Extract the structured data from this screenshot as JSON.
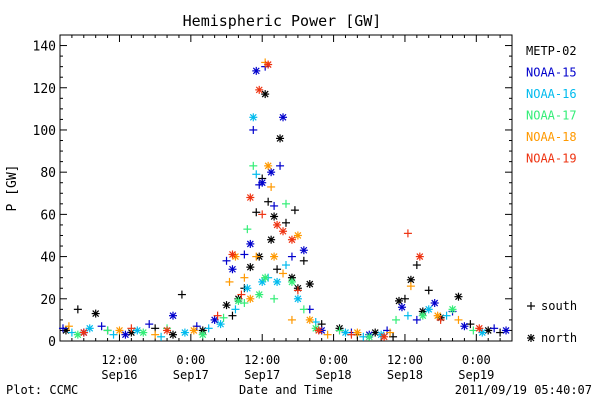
{
  "chart_data": {
    "type": "scatter",
    "title": "Hemispheric Power [GW]",
    "ylabel": "P [GW]",
    "xlabel": "Date and Time",
    "ylim": [
      0,
      145
    ],
    "xlim": [
      "2011-09-16T02:00",
      "2011-09-19T06:00"
    ],
    "yticks": [
      0,
      20,
      40,
      60,
      80,
      100,
      120,
      140
    ],
    "xticks": [
      {
        "t": "2011-09-16T12:00",
        "time": "12:00",
        "date": "Sep16"
      },
      {
        "t": "2011-09-17T00:00",
        "time": "0:00",
        "date": "Sep17"
      },
      {
        "t": "2011-09-17T12:00",
        "time": "12:00",
        "date": "Sep17"
      },
      {
        "t": "2011-09-18T00:00",
        "time": "0:00",
        "date": "Sep18"
      },
      {
        "t": "2011-09-18T12:00",
        "time": "12:00",
        "date": "Sep18"
      },
      {
        "t": "2011-09-19T00:00",
        "time": "0:00",
        "date": "Sep19"
      }
    ],
    "legend_position": "right",
    "marker_legend": [
      {
        "marker": "+",
        "label": "south"
      },
      {
        "marker": "*",
        "label": "north"
      }
    ],
    "series": [
      {
        "name": "METP-02",
        "color": "#000000",
        "points": [
          {
            "x": "2011-09-16T03:00",
            "y": 5,
            "m": "*"
          },
          {
            "x": "2011-09-16T05:00",
            "y": 15,
            "m": "+"
          },
          {
            "x": "2011-09-16T08:00",
            "y": 13,
            "m": "*"
          },
          {
            "x": "2011-09-16T10:00",
            "y": 5,
            "m": "+"
          },
          {
            "x": "2011-09-16T14:00",
            "y": 4,
            "m": "*"
          },
          {
            "x": "2011-09-16T18:00",
            "y": 6,
            "m": "+"
          },
          {
            "x": "2011-09-16T21:00",
            "y": 3,
            "m": "*"
          },
          {
            "x": "2011-09-16T22:30",
            "y": 22,
            "m": "+"
          },
          {
            "x": "2011-09-17T02:00",
            "y": 5,
            "m": "*"
          },
          {
            "x": "2011-09-17T06:00",
            "y": 17,
            "m": "*"
          },
          {
            "x": "2011-09-17T07:00",
            "y": 12,
            "m": "+"
          },
          {
            "x": "2011-09-17T08:00",
            "y": 20,
            "m": "*"
          },
          {
            "x": "2011-09-17T09:00",
            "y": 25,
            "m": "+"
          },
          {
            "x": "2011-09-17T10:00",
            "y": 35,
            "m": "*"
          },
          {
            "x": "2011-09-17T11:00",
            "y": 61,
            "m": "+"
          },
          {
            "x": "2011-09-17T11:30",
            "y": 40,
            "m": "*"
          },
          {
            "x": "2011-09-17T12:00",
            "y": 77,
            "m": "+"
          },
          {
            "x": "2011-09-17T12:30",
            "y": 117,
            "m": "*"
          },
          {
            "x": "2011-09-17T13:00",
            "y": 66,
            "m": "+"
          },
          {
            "x": "2011-09-17T13:30",
            "y": 48,
            "m": "*"
          },
          {
            "x": "2011-09-17T14:00",
            "y": 59,
            "m": "*"
          },
          {
            "x": "2011-09-17T14:30",
            "y": 34,
            "m": "+"
          },
          {
            "x": "2011-09-17T15:00",
            "y": 96,
            "m": "*"
          },
          {
            "x": "2011-09-17T16:00",
            "y": 56,
            "m": "+"
          },
          {
            "x": "2011-09-17T17:00",
            "y": 30,
            "m": "*"
          },
          {
            "x": "2011-09-17T17:30",
            "y": 62,
            "m": "+"
          },
          {
            "x": "2011-09-17T18:00",
            "y": 25,
            "m": "*"
          },
          {
            "x": "2011-09-17T19:00",
            "y": 38,
            "m": "+"
          },
          {
            "x": "2011-09-17T20:00",
            "y": 27,
            "m": "*"
          },
          {
            "x": "2011-09-17T22:00",
            "y": 8,
            "m": "+"
          },
          {
            "x": "2011-09-18T01:00",
            "y": 6,
            "m": "*"
          },
          {
            "x": "2011-09-18T04:00",
            "y": 3,
            "m": "+"
          },
          {
            "x": "2011-09-18T07:00",
            "y": 4,
            "m": "*"
          },
          {
            "x": "2011-09-18T10:00",
            "y": 2,
            "m": "+"
          },
          {
            "x": "2011-09-18T11:00",
            "y": 19,
            "m": "*"
          },
          {
            "x": "2011-09-18T12:00",
            "y": 20,
            "m": "+"
          },
          {
            "x": "2011-09-18T13:00",
            "y": 29,
            "m": "*"
          },
          {
            "x": "2011-09-18T14:00",
            "y": 36,
            "m": "+"
          },
          {
            "x": "2011-09-18T15:00",
            "y": 14,
            "m": "*"
          },
          {
            "x": "2011-09-18T16:00",
            "y": 24,
            "m": "+"
          },
          {
            "x": "2011-09-18T18:00",
            "y": 11,
            "m": "*"
          },
          {
            "x": "2011-09-18T21:00",
            "y": 21,
            "m": "*"
          },
          {
            "x": "2011-09-18T23:00",
            "y": 8,
            "m": "+"
          },
          {
            "x": "2011-09-19T02:00",
            "y": 5,
            "m": "*"
          },
          {
            "x": "2011-09-19T04:00",
            "y": 4,
            "m": "+"
          }
        ]
      },
      {
        "name": "NOAA-15",
        "color": "#0000cc",
        "points": [
          {
            "x": "2011-09-16T02:30",
            "y": 6,
            "m": "+"
          },
          {
            "x": "2011-09-16T06:00",
            "y": 4,
            "m": "*"
          },
          {
            "x": "2011-09-16T09:00",
            "y": 7,
            "m": "+"
          },
          {
            "x": "2011-09-16T13:00",
            "y": 3,
            "m": "*"
          },
          {
            "x": "2011-09-16T17:00",
            "y": 8,
            "m": "+"
          },
          {
            "x": "2011-09-16T21:00",
            "y": 12,
            "m": "*"
          },
          {
            "x": "2011-09-17T01:00",
            "y": 7,
            "m": "+"
          },
          {
            "x": "2011-09-17T04:00",
            "y": 10,
            "m": "*"
          },
          {
            "x": "2011-09-17T06:00",
            "y": 38,
            "m": "+"
          },
          {
            "x": "2011-09-17T07:00",
            "y": 34,
            "m": "*"
          },
          {
            "x": "2011-09-17T09:00",
            "y": 41,
            "m": "+"
          },
          {
            "x": "2011-09-17T10:00",
            "y": 46,
            "m": "*"
          },
          {
            "x": "2011-09-17T10:30",
            "y": 100,
            "m": "+"
          },
          {
            "x": "2011-09-17T11:00",
            "y": 128,
            "m": "*"
          },
          {
            "x": "2011-09-17T11:30",
            "y": 74,
            "m": "+"
          },
          {
            "x": "2011-09-17T12:00",
            "y": 75,
            "m": "*"
          },
          {
            "x": "2011-09-17T12:30",
            "y": 130,
            "m": "+"
          },
          {
            "x": "2011-09-17T13:30",
            "y": 80,
            "m": "*"
          },
          {
            "x": "2011-09-17T14:00",
            "y": 64,
            "m": "+"
          },
          {
            "x": "2011-09-17T15:00",
            "y": 83,
            "m": "+"
          },
          {
            "x": "2011-09-17T15:30",
            "y": 106,
            "m": "*"
          },
          {
            "x": "2011-09-17T17:00",
            "y": 40,
            "m": "+"
          },
          {
            "x": "2011-09-17T19:00",
            "y": 43,
            "m": "*"
          },
          {
            "x": "2011-09-17T20:00",
            "y": 15,
            "m": "+"
          },
          {
            "x": "2011-09-17T22:00",
            "y": 5,
            "m": "*"
          },
          {
            "x": "2011-09-18T03:00",
            "y": 4,
            "m": "+"
          },
          {
            "x": "2011-09-18T06:00",
            "y": 3,
            "m": "*"
          },
          {
            "x": "2011-09-18T09:00",
            "y": 5,
            "m": "+"
          },
          {
            "x": "2011-09-18T11:30",
            "y": 16,
            "m": "*"
          },
          {
            "x": "2011-09-18T14:00",
            "y": 10,
            "m": "+"
          },
          {
            "x": "2011-09-18T17:00",
            "y": 18,
            "m": "*"
          },
          {
            "x": "2011-09-18T20:00",
            "y": 14,
            "m": "+"
          },
          {
            "x": "2011-09-18T22:00",
            "y": 7,
            "m": "*"
          },
          {
            "x": "2011-09-19T03:00",
            "y": 6,
            "m": "+"
          },
          {
            "x": "2011-09-19T05:00",
            "y": 5,
            "m": "*"
          }
        ]
      },
      {
        "name": "NOAA-16",
        "color": "#00bbee",
        "points": [
          {
            "x": "2011-09-16T04:00",
            "y": 4,
            "m": "+"
          },
          {
            "x": "2011-09-16T07:00",
            "y": 6,
            "m": "*"
          },
          {
            "x": "2011-09-16T11:00",
            "y": 3,
            "m": "+"
          },
          {
            "x": "2011-09-16T15:00",
            "y": 5,
            "m": "*"
          },
          {
            "x": "2011-09-16T19:00",
            "y": 2,
            "m": "+"
          },
          {
            "x": "2011-09-16T23:00",
            "y": 4,
            "m": "*"
          },
          {
            "x": "2011-09-17T03:00",
            "y": 6,
            "m": "+"
          },
          {
            "x": "2011-09-17T05:00",
            "y": 8,
            "m": "*"
          },
          {
            "x": "2011-09-17T07:30",
            "y": 15,
            "m": "+"
          },
          {
            "x": "2011-09-17T09:30",
            "y": 25,
            "m": "*"
          },
          {
            "x": "2011-09-17T10:30",
            "y": 106,
            "m": "*"
          },
          {
            "x": "2011-09-17T11:00",
            "y": 79,
            "m": "+"
          },
          {
            "x": "2011-09-17T12:00",
            "y": 28,
            "m": "*"
          },
          {
            "x": "2011-09-17T13:00",
            "y": 30,
            "m": "+"
          },
          {
            "x": "2011-09-17T14:30",
            "y": 28,
            "m": "*"
          },
          {
            "x": "2011-09-17T16:00",
            "y": 36,
            "m": "+"
          },
          {
            "x": "2011-09-17T18:00",
            "y": 20,
            "m": "*"
          },
          {
            "x": "2011-09-17T21:00",
            "y": 9,
            "m": "+"
          },
          {
            "x": "2011-09-18T02:00",
            "y": 4,
            "m": "*"
          },
          {
            "x": "2011-09-18T05:00",
            "y": 2,
            "m": "+"
          },
          {
            "x": "2011-09-18T08:00",
            "y": 3,
            "m": "*"
          },
          {
            "x": "2011-09-18T12:30",
            "y": 12,
            "m": "+"
          },
          {
            "x": "2011-09-18T16:00",
            "y": 15,
            "m": "*"
          },
          {
            "x": "2011-09-18T19:00",
            "y": 12,
            "m": "+"
          },
          {
            "x": "2011-09-19T01:00",
            "y": 4,
            "m": "*"
          }
        ]
      },
      {
        "name": "NOAA-17",
        "color": "#33ee77",
        "points": [
          {
            "x": "2011-09-16T05:00",
            "y": 3,
            "m": "*"
          },
          {
            "x": "2011-09-16T10:00",
            "y": 5,
            "m": "+"
          },
          {
            "x": "2011-09-16T16:00",
            "y": 4,
            "m": "*"
          },
          {
            "x": "2011-09-16T20:00",
            "y": 6,
            "m": "+"
          },
          {
            "x": "2011-09-17T02:00",
            "y": 3,
            "m": "*"
          },
          {
            "x": "2011-09-17T05:30",
            "y": 11,
            "m": "+"
          },
          {
            "x": "2011-09-17T08:00",
            "y": 19,
            "m": "*"
          },
          {
            "x": "2011-09-17T09:00",
            "y": 18,
            "m": "+"
          },
          {
            "x": "2011-09-17T09:30",
            "y": 53,
            "m": "+"
          },
          {
            "x": "2011-09-17T10:30",
            "y": 83,
            "m": "+"
          },
          {
            "x": "2011-09-17T11:30",
            "y": 22,
            "m": "*"
          },
          {
            "x": "2011-09-17T12:30",
            "y": 30,
            "m": "*"
          },
          {
            "x": "2011-09-17T14:00",
            "y": 20,
            "m": "+"
          },
          {
            "x": "2011-09-17T16:00",
            "y": 65,
            "m": "+"
          },
          {
            "x": "2011-09-17T17:00",
            "y": 28,
            "m": "*"
          },
          {
            "x": "2011-09-17T19:00",
            "y": 15,
            "m": "+"
          },
          {
            "x": "2011-09-17T21:00",
            "y": 6,
            "m": "*"
          },
          {
            "x": "2011-09-18T01:00",
            "y": 5,
            "m": "+"
          },
          {
            "x": "2011-09-18T06:00",
            "y": 2,
            "m": "*"
          },
          {
            "x": "2011-09-18T10:30",
            "y": 10,
            "m": "+"
          },
          {
            "x": "2011-09-18T15:00",
            "y": 12,
            "m": "*"
          },
          {
            "x": "2011-09-18T20:00",
            "y": 15,
            "m": "*"
          },
          {
            "x": "2011-09-18T23:30",
            "y": 5,
            "m": "+"
          }
        ]
      },
      {
        "name": "NOAA-18",
        "color": "#ff9900",
        "points": [
          {
            "x": "2011-09-16T03:30",
            "y": 7,
            "m": "+"
          },
          {
            "x": "2011-09-16T12:00",
            "y": 5,
            "m": "*"
          },
          {
            "x": "2011-09-16T18:00",
            "y": 3,
            "m": "+"
          },
          {
            "x": "2011-09-17T00:30",
            "y": 5,
            "m": "*"
          },
          {
            "x": "2011-09-17T06:30",
            "y": 28,
            "m": "+"
          },
          {
            "x": "2011-09-17T07:30",
            "y": 40,
            "m": "*"
          },
          {
            "x": "2011-09-17T09:00",
            "y": 30,
            "m": "+"
          },
          {
            "x": "2011-09-17T10:00",
            "y": 20,
            "m": "*"
          },
          {
            "x": "2011-09-17T11:00",
            "y": 40,
            "m": "+"
          },
          {
            "x": "2011-09-17T12:30",
            "y": 132,
            "m": "+"
          },
          {
            "x": "2011-09-17T13:00",
            "y": 83,
            "m": "*"
          },
          {
            "x": "2011-09-17T13:30",
            "y": 73,
            "m": "+"
          },
          {
            "x": "2011-09-17T14:00",
            "y": 40,
            "m": "*"
          },
          {
            "x": "2011-09-17T15:30",
            "y": 32,
            "m": "+"
          },
          {
            "x": "2011-09-17T17:00",
            "y": 10,
            "m": "+"
          },
          {
            "x": "2011-09-17T18:00",
            "y": 50,
            "m": "*"
          },
          {
            "x": "2011-09-17T20:00",
            "y": 10,
            "m": "*"
          },
          {
            "x": "2011-09-17T23:00",
            "y": 3,
            "m": "+"
          },
          {
            "x": "2011-09-18T04:00",
            "y": 4,
            "m": "*"
          },
          {
            "x": "2011-09-18T09:30",
            "y": 4,
            "m": "+"
          },
          {
            "x": "2011-09-18T13:00",
            "y": 26,
            "m": "+"
          },
          {
            "x": "2011-09-18T17:30",
            "y": 12,
            "m": "*"
          },
          {
            "x": "2011-09-18T21:00",
            "y": 10,
            "m": "+"
          }
        ]
      },
      {
        "name": "NOAA-19",
        "color": "#ee3311",
        "points": [
          {
            "x": "2011-09-16T06:00",
            "y": 4,
            "m": "*"
          },
          {
            "x": "2011-09-16T14:00",
            "y": 6,
            "m": "+"
          },
          {
            "x": "2011-09-16T20:00",
            "y": 5,
            "m": "*"
          },
          {
            "x": "2011-09-17T04:30",
            "y": 12,
            "m": "+"
          },
          {
            "x": "2011-09-17T07:00",
            "y": 41,
            "m": "*"
          },
          {
            "x": "2011-09-17T08:30",
            "y": 22,
            "m": "+"
          },
          {
            "x": "2011-09-17T10:00",
            "y": 68,
            "m": "*"
          },
          {
            "x": "2011-09-17T11:30",
            "y": 119,
            "m": "*"
          },
          {
            "x": "2011-09-17T12:00",
            "y": 60,
            "m": "+"
          },
          {
            "x": "2011-09-17T13:00",
            "y": 131,
            "m": "*"
          },
          {
            "x": "2011-09-17T14:30",
            "y": 55,
            "m": "*"
          },
          {
            "x": "2011-09-17T15:30",
            "y": 52,
            "m": "*"
          },
          {
            "x": "2011-09-17T17:00",
            "y": 48,
            "m": "*"
          },
          {
            "x": "2011-09-17T18:00",
            "y": 24,
            "m": "+"
          },
          {
            "x": "2011-09-17T21:30",
            "y": 5,
            "m": "*"
          },
          {
            "x": "2011-09-18T03:00",
            "y": 3,
            "m": "+"
          },
          {
            "x": "2011-09-18T08:30",
            "y": 2,
            "m": "*"
          },
          {
            "x": "2011-09-18T12:30",
            "y": 51,
            "m": "+"
          },
          {
            "x": "2011-09-18T14:30",
            "y": 40,
            "m": "*"
          },
          {
            "x": "2011-09-18T18:00",
            "y": 10,
            "m": "+"
          },
          {
            "x": "2011-09-19T00:30",
            "y": 6,
            "m": "*"
          }
        ]
      }
    ]
  },
  "footer": {
    "plot_credit": "Plot: CCMC",
    "timestamp": "2011/09/19 05:40:07"
  }
}
